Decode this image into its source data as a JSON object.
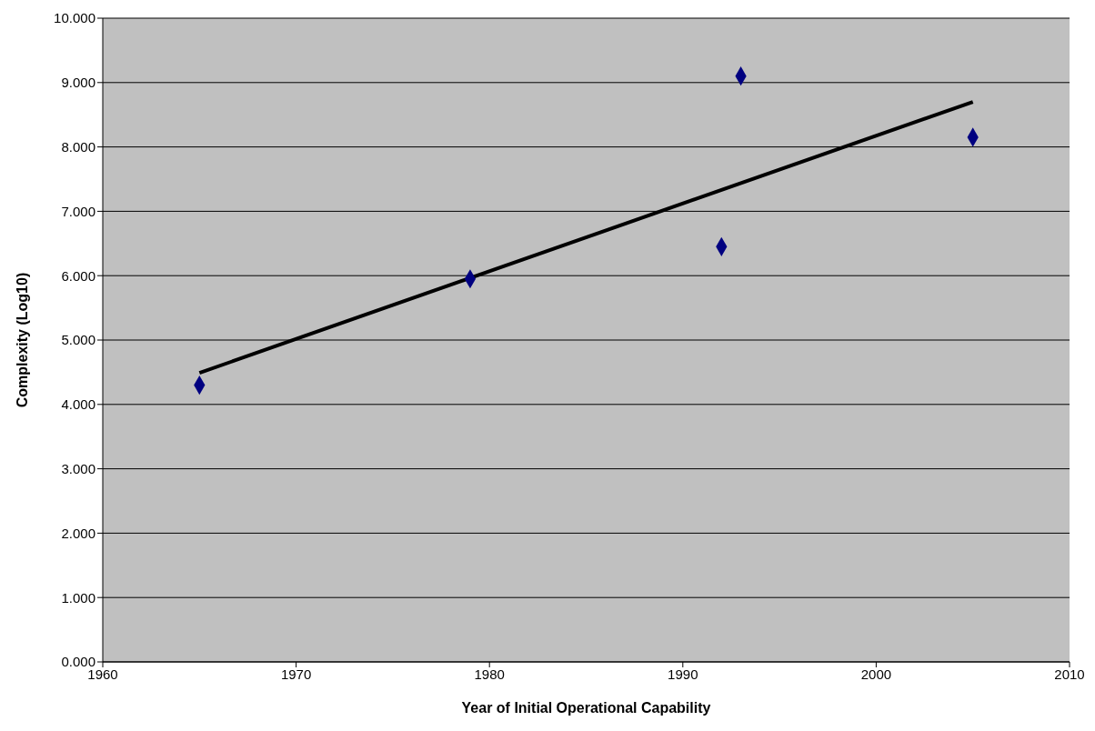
{
  "chart_data": {
    "type": "scatter",
    "xlabel": "Year of Initial Operational Capability",
    "ylabel": "Complexity (Log10)",
    "series": [
      {
        "color": "#000080",
        "marker": "diamond",
        "x": [
          1965,
          1979,
          1992,
          1993,
          2005
        ],
        "values": [
          4.3,
          5.95,
          6.45,
          9.1,
          8.15
        ]
      },
      {
        "type": "line",
        "marker": "none",
        "color": "#000000",
        "x": [
          1965,
          2005
        ],
        "values": [
          4.49,
          8.7
        ]
      }
    ],
    "xlim": [
      1960,
      2010
    ],
    "xticks": [
      1960,
      1970,
      1980,
      1990,
      2000,
      2010
    ],
    "ylim": [
      0,
      10
    ],
    "yticks": [
      {
        "value": 0,
        "label": "0.000"
      },
      {
        "value": 1,
        "label": "1.000"
      },
      {
        "value": 2,
        "label": "2.000"
      },
      {
        "value": 3,
        "label": "3.000"
      },
      {
        "value": 4,
        "label": "4.000"
      },
      {
        "value": 5,
        "label": "5.000"
      },
      {
        "value": 6,
        "label": "6.000"
      },
      {
        "value": 7,
        "label": "7.000"
      },
      {
        "value": 8,
        "label": "8.000"
      },
      {
        "value": 9,
        "label": "9.000"
      },
      {
        "value": 10,
        "label": "10.000"
      }
    ],
    "grid": "y",
    "legend": false,
    "line_style": "solid"
  }
}
